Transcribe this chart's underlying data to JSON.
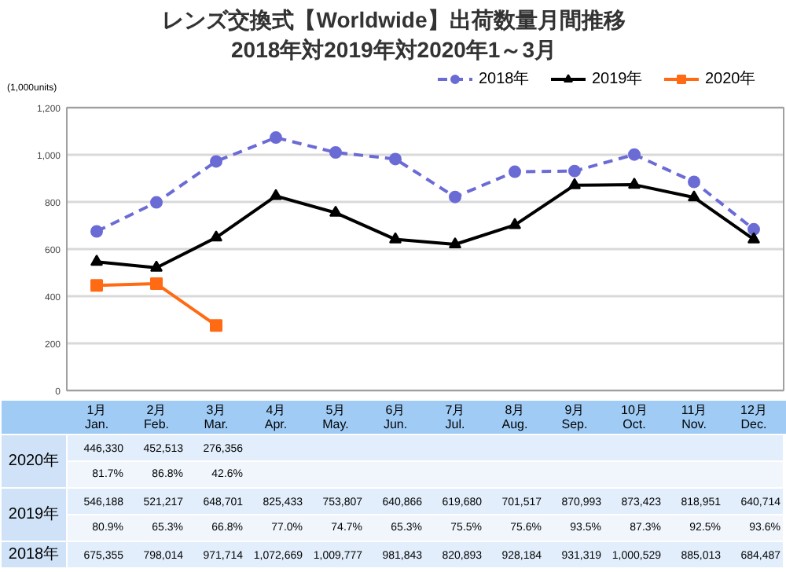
{
  "chart_data": {
    "type": "line",
    "title": "レンズ交換式【Worldwide】出荷数量月間推移",
    "subtitle": "2018年対2019年対2020年1～3月",
    "ylabel": "(1,000units)",
    "categories": [
      "1月\nJan.",
      "2月\nFeb.",
      "3月\nMar.",
      "4月\nApr.",
      "5月\nMay.",
      "6月\nJun.",
      "7月\nJul.",
      "8月\nAug.",
      "9月\nSep.",
      "10月\nOct.",
      "11月\nNov.",
      "12月\nDec."
    ],
    "ylim": [
      0,
      1200
    ],
    "yticks": [
      0,
      200,
      400,
      600,
      800,
      {
        "value": 1000,
        "label": "1,000"
      },
      {
        "value": 1200,
        "label": "1,200"
      }
    ],
    "grid": "y",
    "legend": "top right",
    "series": [
      {
        "name": "2018年",
        "color": "#6b6bd6",
        "marker": "circle",
        "line_style": "dashed",
        "values": [
          675,
          798,
          972,
          1073,
          1010,
          982,
          821,
          928,
          931,
          1001,
          885,
          684
        ]
      },
      {
        "name": "2019年",
        "color": "#000000",
        "marker": "triangle",
        "line_style": "solid",
        "values": [
          546,
          521,
          649,
          825,
          754,
          641,
          620,
          702,
          871,
          873,
          819,
          641
        ]
      },
      {
        "name": "2020年",
        "color": "#ff6a13",
        "marker": "square",
        "line_style": "solid",
        "values": [
          446,
          453,
          276,
          null,
          null,
          null,
          null,
          null,
          null,
          null,
          null,
          null
        ]
      }
    ],
    "annotations": [
      "446,330",
      "452,513",
      "276,356",
      "81.7%",
      "86.8%",
      "42.6%",
      "546,188",
      "521,217",
      "648,701",
      "825,433",
      "753,807",
      "640,866",
      "619,680",
      "701,517",
      "870,993",
      "873,423",
      "818,951",
      "640,714",
      "80.9%",
      "65.3%",
      "66.8%",
      "77.0%",
      "74.7%",
      "65.3%",
      "75.5%",
      "75.6%",
      "93.5%",
      "87.3%",
      "92.5%",
      "93.6%",
      "675,355",
      "798,014",
      "971,714",
      "1,072,669",
      "1,009,777",
      "981,843",
      "820,893",
      "928,184",
      "931,319",
      "1,000,529",
      "885,013",
      "684,487"
    ]
  }
}
